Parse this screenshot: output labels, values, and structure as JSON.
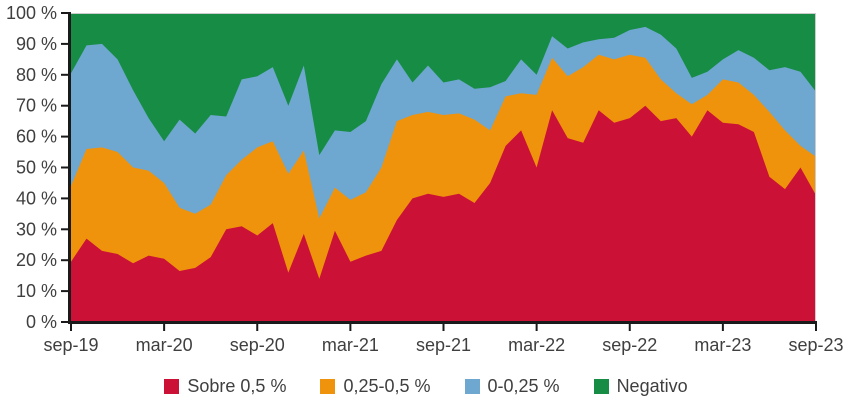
{
  "chart_data": {
    "type": "area",
    "stacked": true,
    "title": "",
    "xlabel": "",
    "ylabel": "",
    "y_unit": "%",
    "ylim": [
      0,
      100
    ],
    "grid": false,
    "legend_position": "bottom",
    "background": "#ffffff",
    "axis_color": "#1a1a1a",
    "frame_color": "#cccccc",
    "text_color": "#3f3f3f",
    "y_tick_labels": [
      "0 %",
      "10 %",
      "20 %",
      "30 %",
      "40 %",
      "50 %",
      "60 %",
      "70 %",
      "80 %",
      "90 %",
      "100 %"
    ],
    "x_tick_labels": [
      "sep-19",
      "mar-20",
      "sep-20",
      "mar-21",
      "sep-21",
      "mar-22",
      "sep-22",
      "mar-23",
      "sep-23"
    ],
    "x_tick_every": 6,
    "x": [
      "sep-19",
      "oct-19",
      "nov-19",
      "dic-19",
      "ene-20",
      "feb-20",
      "mar-20",
      "abr-20",
      "may-20",
      "jun-20",
      "jul-20",
      "ago-20",
      "sep-20",
      "oct-20",
      "nov-20",
      "dic-20",
      "ene-21",
      "feb-21",
      "mar-21",
      "abr-21",
      "may-21",
      "jun-21",
      "jul-21",
      "ago-21",
      "sep-21",
      "oct-21",
      "nov-21",
      "dic-21",
      "ene-22",
      "feb-22",
      "mar-22",
      "abr-22",
      "may-22",
      "jun-22",
      "jul-22",
      "ago-22",
      "sep-22",
      "oct-22",
      "nov-22",
      "dic-22",
      "ene-23",
      "feb-23",
      "mar-23",
      "abr-23",
      "may-23",
      "jun-23",
      "jul-23",
      "ago-23",
      "sep-23"
    ],
    "series": [
      {
        "name": "Sobre 0,5 %",
        "color": "#cb1236",
        "values": [
          19.5,
          27,
          23,
          22,
          19,
          21.5,
          20.5,
          16.5,
          17.5,
          21,
          30,
          31,
          28,
          32,
          16,
          28.5,
          14,
          29.5,
          19.5,
          21.5,
          23,
          33,
          40,
          41.5,
          40.5,
          41.5,
          38.5,
          45,
          57,
          62,
          50,
          68.5,
          59.5,
          58,
          68.5,
          64.5,
          66,
          70,
          65,
          66,
          60,
          68.5,
          64.5,
          64,
          61.5,
          47,
          43,
          50,
          41
        ]
      },
      {
        "name": "0,25-0,5 %",
        "color": "#f0930c",
        "values": [
          24.5,
          29,
          33.5,
          33,
          31,
          27.5,
          24.5,
          20.5,
          17.5,
          17,
          17.5,
          21.5,
          28.5,
          26.5,
          32,
          27,
          19.5,
          14,
          20,
          20.5,
          27,
          32,
          27,
          26.5,
          26.5,
          26,
          27,
          17,
          16,
          12,
          23.5,
          17,
          20,
          24.5,
          18,
          20.5,
          20.5,
          15.5,
          13.5,
          8,
          10.5,
          5,
          14,
          13.5,
          12,
          21,
          19,
          7,
          12.5
        ]
      },
      {
        "name": "0-0,25 %",
        "color": "#6ea7cf",
        "values": [
          36.5,
          33.5,
          33.5,
          30,
          25,
          17,
          13.5,
          28.5,
          26,
          29,
          19,
          26,
          23,
          24,
          22,
          27.5,
          20.5,
          18.5,
          22,
          23,
          27,
          20,
          10.5,
          15,
          10.5,
          11,
          10,
          14,
          5,
          11,
          6.5,
          7,
          9,
          8,
          5,
          7,
          8,
          10,
          14.5,
          14.5,
          8.5,
          7.5,
          6.5,
          10.5,
          12,
          13.5,
          20.5,
          24,
          21
        ]
      },
      {
        "name": "Negativo",
        "color": "#168c44",
        "values": [
          19.5,
          10.5,
          10,
          15,
          25,
          34,
          41.5,
          34.5,
          39,
          33,
          33.5,
          21.5,
          20.5,
          17.5,
          30,
          17,
          46,
          38,
          38.5,
          35,
          23,
          15,
          22.5,
          17,
          22.5,
          21.5,
          24.5,
          24,
          22,
          15,
          20,
          7.5,
          11.5,
          9.5,
          8.5,
          8,
          5.5,
          4.5,
          7,
          11.5,
          21,
          19,
          15,
          12,
          14.5,
          18.5,
          17.5,
          19,
          25.5
        ]
      }
    ]
  }
}
